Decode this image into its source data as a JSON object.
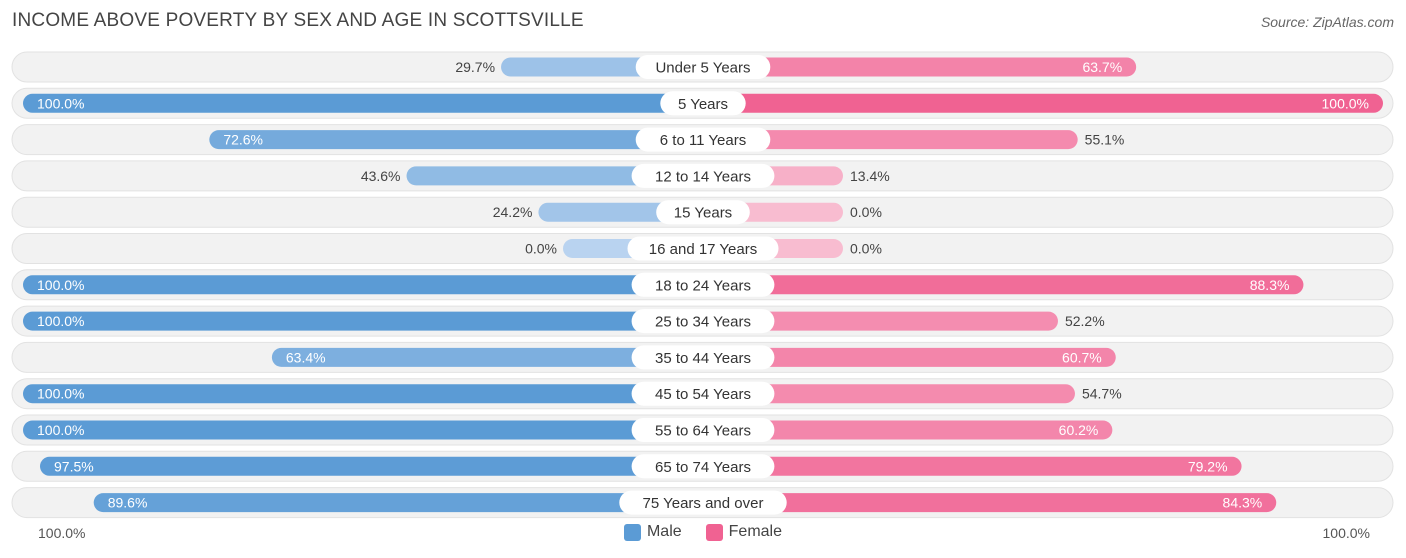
{
  "header": {
    "title": "INCOME ABOVE POVERTY BY SEX AND AGE IN SCOTTSVILLE",
    "source": "Source: ZipAtlas.com"
  },
  "chart_data": {
    "type": "bar",
    "orientation": "horizontal-diverging",
    "title": "INCOME ABOVE POVERTY BY SEX AND AGE IN SCOTTSVILLE",
    "categories": [
      "Under 5 Years",
      "5 Years",
      "6 to 11 Years",
      "12 to 14 Years",
      "15 Years",
      "16 and 17 Years",
      "18 to 24 Years",
      "25 to 34 Years",
      "35 to 44 Years",
      "45 to 54 Years",
      "55 to 64 Years",
      "65 to 74 Years",
      "75 Years and over"
    ],
    "series": [
      {
        "name": "Male",
        "color": "#5b9bd5",
        "values": [
          29.7,
          100.0,
          72.6,
          43.6,
          24.2,
          0.0,
          100.0,
          100.0,
          63.4,
          100.0,
          100.0,
          97.5,
          89.6
        ]
      },
      {
        "name": "Female",
        "color": "#f06292",
        "values": [
          63.7,
          100.0,
          55.1,
          13.4,
          0.0,
          0.0,
          88.3,
          52.2,
          60.7,
          54.7,
          60.2,
          79.2,
          84.3
        ]
      }
    ],
    "value_labels": {
      "Male": [
        "29.7%",
        "100.0%",
        "72.6%",
        "43.6%",
        "24.2%",
        "0.0%",
        "100.0%",
        "100.0%",
        "63.4%",
        "100.0%",
        "100.0%",
        "97.5%",
        "89.6%"
      ],
      "Female": [
        "63.7%",
        "100.0%",
        "55.1%",
        "13.4%",
        "0.0%",
        "0.0%",
        "88.3%",
        "52.2%",
        "60.7%",
        "54.7%",
        "60.2%",
        "79.2%",
        "84.3%"
      ]
    },
    "axis": {
      "left_label": "100.0%",
      "right_label": "100.0%",
      "xlim": [
        -100,
        100
      ]
    },
    "legend": [
      "Male",
      "Female"
    ],
    "legend_position": "bottom-center"
  }
}
